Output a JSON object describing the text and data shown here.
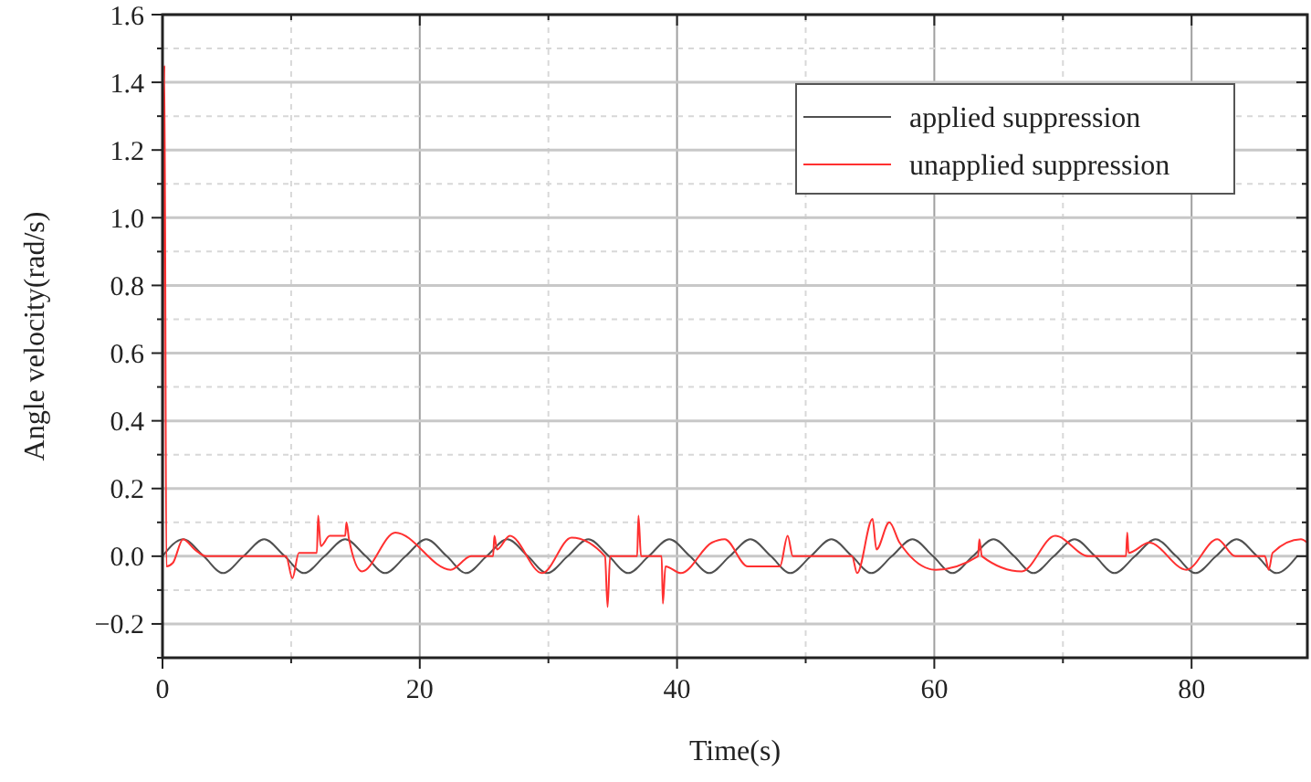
{
  "chart_data": {
    "type": "line",
    "xlabel": "Time(s)",
    "ylabel": "Angle velocity(rad/s)",
    "xlim": [
      0,
      89
    ],
    "ylim": [
      -0.3,
      1.6
    ],
    "xticks": [
      0,
      {
        "value": 10,
        "label": null
      },
      20,
      {
        "value": 30,
        "label": null
      },
      40,
      {
        "value": 50,
        "label": null
      },
      60,
      {
        "value": 70,
        "label": null
      },
      80
    ],
    "yticks": [
      {
        "value": -0.3,
        "label": null
      },
      {
        "value": -0.2,
        "label": "−0.2"
      },
      {
        "value": -0.1,
        "label": null
      },
      {
        "value": 0,
        "label": "0.0"
      },
      {
        "value": 0.1,
        "label": null
      },
      {
        "value": 0.2,
        "label": "0.2"
      },
      {
        "value": 0.3,
        "label": null
      },
      {
        "value": 0.4,
        "label": "0.4"
      },
      {
        "value": 0.5,
        "label": null
      },
      {
        "value": 0.6,
        "label": "0.6"
      },
      {
        "value": 0.7,
        "label": null
      },
      {
        "value": 0.8,
        "label": "0.8"
      },
      {
        "value": 0.9,
        "label": null
      },
      {
        "value": 1,
        "label": "1.0"
      },
      {
        "value": 1.1,
        "label": null
      },
      {
        "value": 1.2,
        "label": "1.2"
      },
      {
        "value": 1.3,
        "label": null
      },
      {
        "value": 1.4,
        "label": "1.4"
      },
      {
        "value": 1.5,
        "label": null
      },
      {
        "value": 1.6,
        "label": "1.6"
      }
    ],
    "grid": true,
    "legend": "top right",
    "line_style": "solid",
    "marker": "none",
    "series": [
      {
        "name": "applied suppression",
        "color": "#505050",
        "x": [
          0,
          1.6,
          3.2,
          4.7,
          6.3,
          7.9,
          9.5,
          11,
          12.6,
          14.2,
          15.8,
          17.3,
          18.9,
          20.5,
          22.1,
          23.6,
          25.2,
          26.8,
          28.4,
          29.9,
          31.5,
          33.1,
          34.7,
          36.2,
          37.8,
          39.4,
          41,
          42.5,
          44.1,
          45.7,
          47.3,
          48.8,
          50.4,
          52,
          53.6,
          55.1,
          56.7,
          58.3,
          59.9,
          61.4,
          63,
          64.6,
          66.2,
          67.7,
          69.3,
          70.9,
          72.5,
          74,
          75.6,
          77.2,
          78.8,
          80.3,
          81.9,
          83.5,
          85.1,
          86.6,
          88.2
        ],
        "values": [
          0,
          0.05,
          0,
          -0.05,
          0,
          0.05,
          0,
          -0.05,
          0,
          0.05,
          0,
          -0.05,
          0,
          0.05,
          0,
          -0.05,
          0,
          0.05,
          0,
          -0.05,
          0,
          0.05,
          0,
          -0.05,
          0,
          0.05,
          0,
          -0.05,
          0,
          0.05,
          0,
          -0.05,
          0,
          0.05,
          0,
          -0.05,
          0,
          0.05,
          0,
          -0.05,
          0,
          0.05,
          0,
          -0.05,
          0,
          0.05,
          0,
          -0.05,
          0,
          0.05,
          0,
          -0.05,
          0,
          0.05,
          0,
          -0.05,
          0
        ]
      },
      {
        "name": "unapplied suppression",
        "color": "#ff3030",
        "x": [
          0,
          0.15,
          0.3,
          0.8,
          1.6,
          2.5,
          3.4,
          9.6,
          10.1,
          10.6,
          12,
          12.1,
          12.3,
          13,
          14.2,
          14.3,
          14.5,
          15.5,
          18.1,
          22.4,
          24,
          25.7,
          25.8,
          26,
          27,
          29.5,
          31.8,
          34.4,
          34.6,
          34.8,
          36.9,
          37,
          37.2,
          38.8,
          38.9,
          39.1,
          40.3,
          42.7,
          43.7,
          45.5,
          48,
          48.6,
          49,
          53.6,
          54,
          55.2,
          55.5,
          56.5,
          57.3,
          60.1,
          63.4,
          63.5,
          63.7,
          66.8,
          69.4,
          72,
          74,
          74.9,
          75,
          75.1,
          76.7,
          79.6,
          82,
          83.4,
          85.7,
          86,
          86.3,
          88.5,
          89
        ],
        "values": [
          0,
          1.45,
          -0.03,
          -0.02,
          0.05,
          0.02,
          0,
          0,
          -0.065,
          0.01,
          0.01,
          0.12,
          0.03,
          0.06,
          0.06,
          0.1,
          0.05,
          -0.045,
          0.07,
          -0.04,
          0,
          0,
          0.06,
          0.02,
          0.06,
          -0.05,
          0.055,
          0,
          -0.15,
          0,
          0,
          0.12,
          0,
          0,
          -0.14,
          -0.03,
          -0.05,
          0.04,
          0.05,
          -0.03,
          -0.03,
          0.06,
          0,
          0,
          -0.05,
          0.11,
          0.02,
          0.1,
          0.04,
          -0.04,
          0,
          0.05,
          0,
          -0.045,
          0.06,
          0,
          0,
          0,
          0.07,
          0.01,
          0.04,
          -0.04,
          0.05,
          0,
          0,
          -0.04,
          0.01,
          0.05,
          0.04
        ]
      }
    ]
  }
}
